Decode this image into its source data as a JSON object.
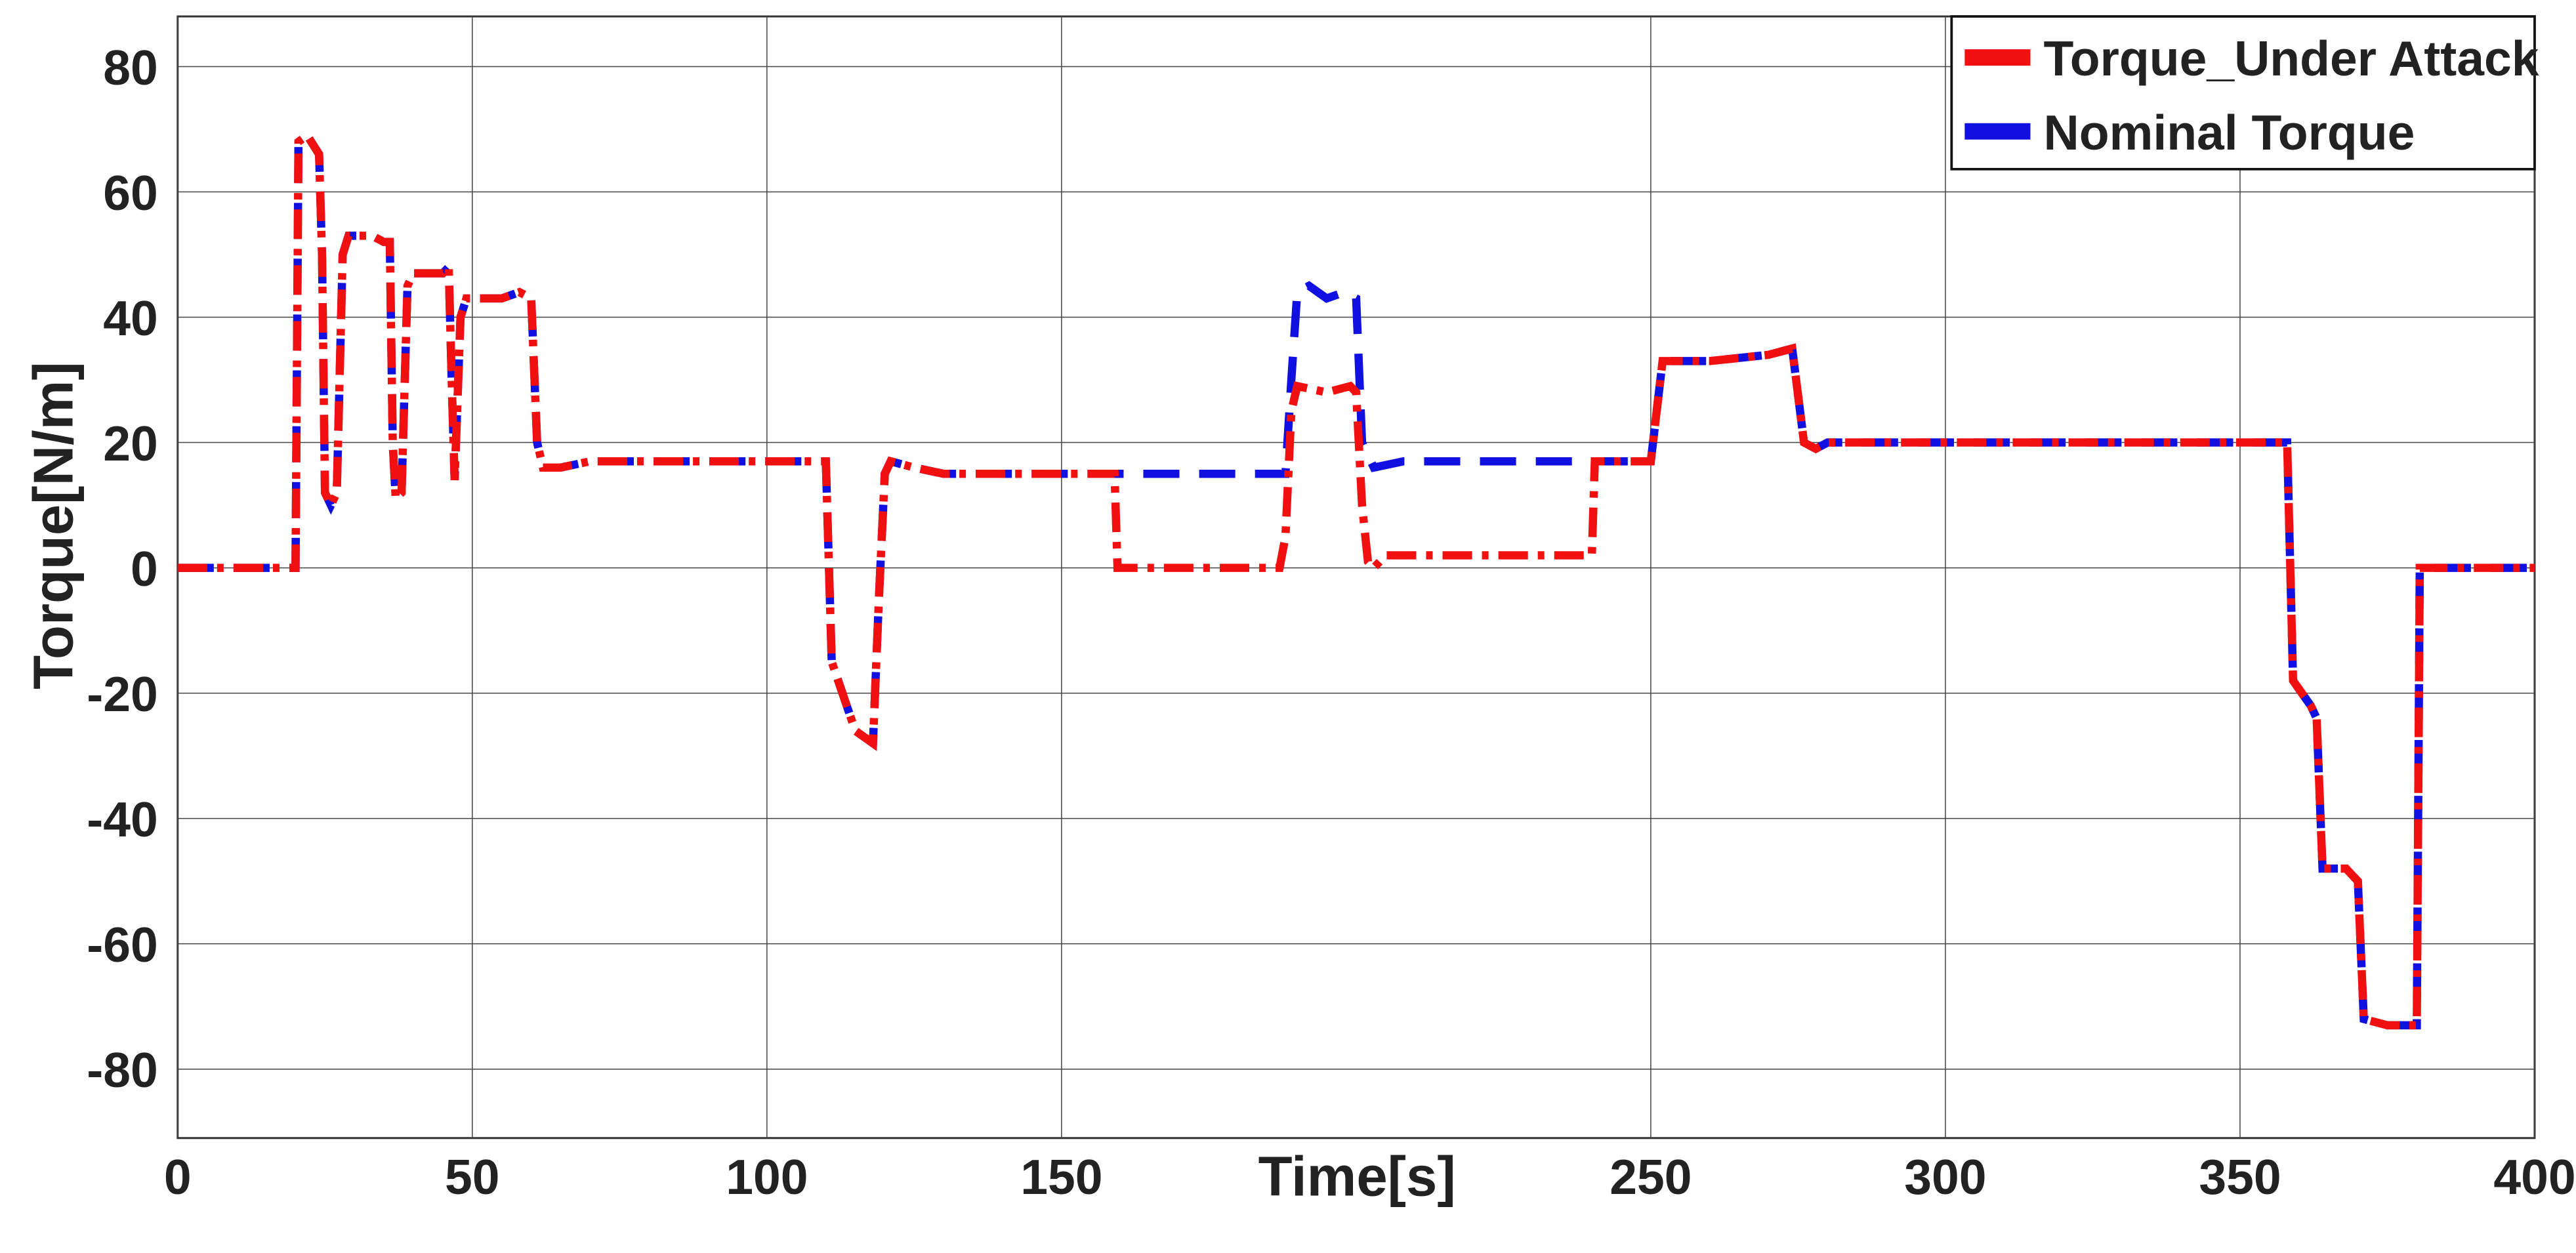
{
  "chart_data": {
    "type": "line",
    "xlabel": "Time[s]",
    "ylabel": "Torque[N/m]",
    "xlim": [
      0,
      400
    ],
    "ylim": [
      -91,
      88
    ],
    "xticks": [
      0,
      50,
      100,
      150,
      250,
      300,
      350,
      400
    ],
    "yticks": [
      -80,
      -60,
      -40,
      -20,
      0,
      20,
      40,
      60,
      80
    ],
    "grid": true,
    "legend": "upper right",
    "series": [
      {
        "name": "Torque_Under Attack",
        "color": "#f01010",
        "dash": "dashdot",
        "x": [
          0,
          20,
          20.5,
          22,
          24,
          24.5,
          25,
          26,
          27,
          28,
          29,
          33,
          35,
          36,
          36.5,
          37,
          38,
          39,
          40,
          45,
          46,
          46.5,
          47,
          48,
          49,
          55,
          58,
          60,
          61,
          62,
          65,
          70,
          110,
          111,
          115,
          118,
          119,
          120,
          121,
          125,
          130,
          150,
          159,
          159.5,
          160,
          187,
          188,
          189,
          190,
          195,
          199,
          200,
          201,
          202,
          203,
          205,
          210,
          240,
          240.5,
          250,
          252,
          260,
          270,
          274,
          276,
          278,
          280,
          358,
          359,
          362,
          363,
          364,
          368,
          370,
          371,
          375,
          378,
          380,
          380.5,
          400
        ],
        "values": [
          0,
          0,
          68,
          69,
          66,
          50,
          12,
          10,
          12,
          50,
          53,
          53,
          52,
          52,
          20,
          11,
          12,
          45,
          47,
          47,
          48,
          30,
          14,
          40,
          43,
          43,
          44,
          43,
          20,
          16,
          16,
          17,
          17,
          -15,
          -26,
          -28,
          -5,
          15,
          17,
          16,
          15,
          15,
          15,
          0,
          0,
          0,
          5,
          25,
          29,
          28,
          29,
          28,
          10,
          1,
          0,
          2,
          2,
          2,
          17,
          17,
          33,
          33,
          34,
          35,
          20,
          19,
          20,
          20,
          -18,
          -22,
          -24,
          -48,
          -48,
          -50,
          -72,
          -73,
          -73,
          -73,
          0,
          0
        ]
      },
      {
        "name": "Nominal Torque",
        "color": "#1010e0",
        "dash": "dash",
        "x": [
          0,
          20,
          20.5,
          22,
          24,
          24.5,
          25,
          26,
          27,
          28,
          29,
          33,
          35,
          36,
          36.5,
          37,
          38,
          39,
          40,
          45,
          46,
          46.5,
          47,
          48,
          49,
          55,
          58,
          60,
          61,
          62,
          65,
          70,
          110,
          111,
          115,
          118,
          119,
          120,
          121,
          125,
          130,
          150,
          160,
          188,
          189,
          190,
          192,
          195,
          198,
          200,
          201,
          203,
          208,
          240,
          250,
          252,
          260,
          270,
          274,
          276,
          278,
          280,
          358,
          359,
          362,
          363,
          364,
          368,
          370,
          371,
          375,
          378,
          380,
          380.5,
          400
        ],
        "values": [
          0,
          0,
          68,
          69,
          66,
          50,
          12,
          10,
          12,
          50,
          53,
          53,
          52,
          52,
          20,
          11,
          12,
          45,
          47,
          47,
          48,
          30,
          14,
          40,
          43,
          43,
          44,
          43,
          20,
          16,
          16,
          17,
          17,
          -15,
          -26,
          -28,
          -5,
          15,
          17,
          16,
          15,
          15,
          15,
          15,
          30,
          44,
          45,
          43,
          44,
          43,
          20,
          16,
          17,
          17,
          17,
          33,
          33,
          34,
          35,
          20,
          19,
          20,
          20,
          -18,
          -22,
          -24,
          -48,
          -48,
          -50,
          -72,
          -73,
          -73,
          -73,
          0,
          0
        ]
      }
    ]
  }
}
